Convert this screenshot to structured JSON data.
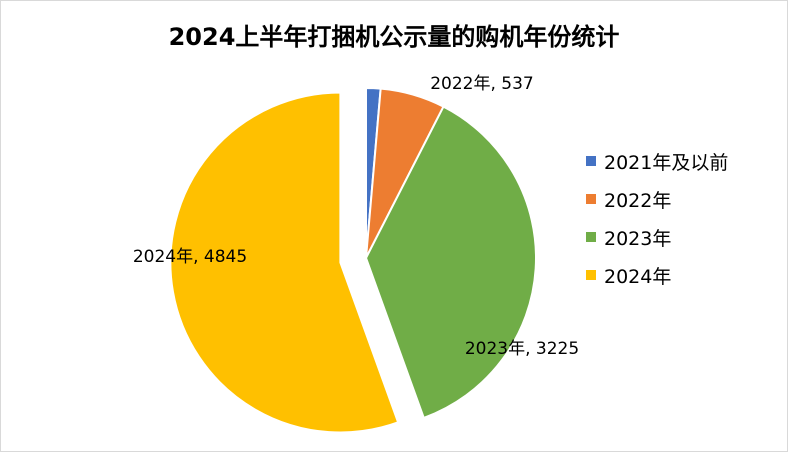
{
  "chart_data": {
    "type": "pie",
    "title": "2024上半年打捆机公示量的购机年份统计",
    "slices": [
      {
        "name": "2021年及以前",
        "value": 120,
        "color": "#4472C4",
        "label": ""
      },
      {
        "name": "2022年",
        "value": 537,
        "color": "#ED7D31",
        "label": "2022年, 537"
      },
      {
        "name": "2023年",
        "value": 3225,
        "color": "#70AD47",
        "label": "2023年, 3225"
      },
      {
        "name": "2024年",
        "value": 4845,
        "color": "#FFC000",
        "label": "2024年, 4845"
      }
    ],
    "legend_position": "right",
    "exploded_slice": "2024年"
  }
}
